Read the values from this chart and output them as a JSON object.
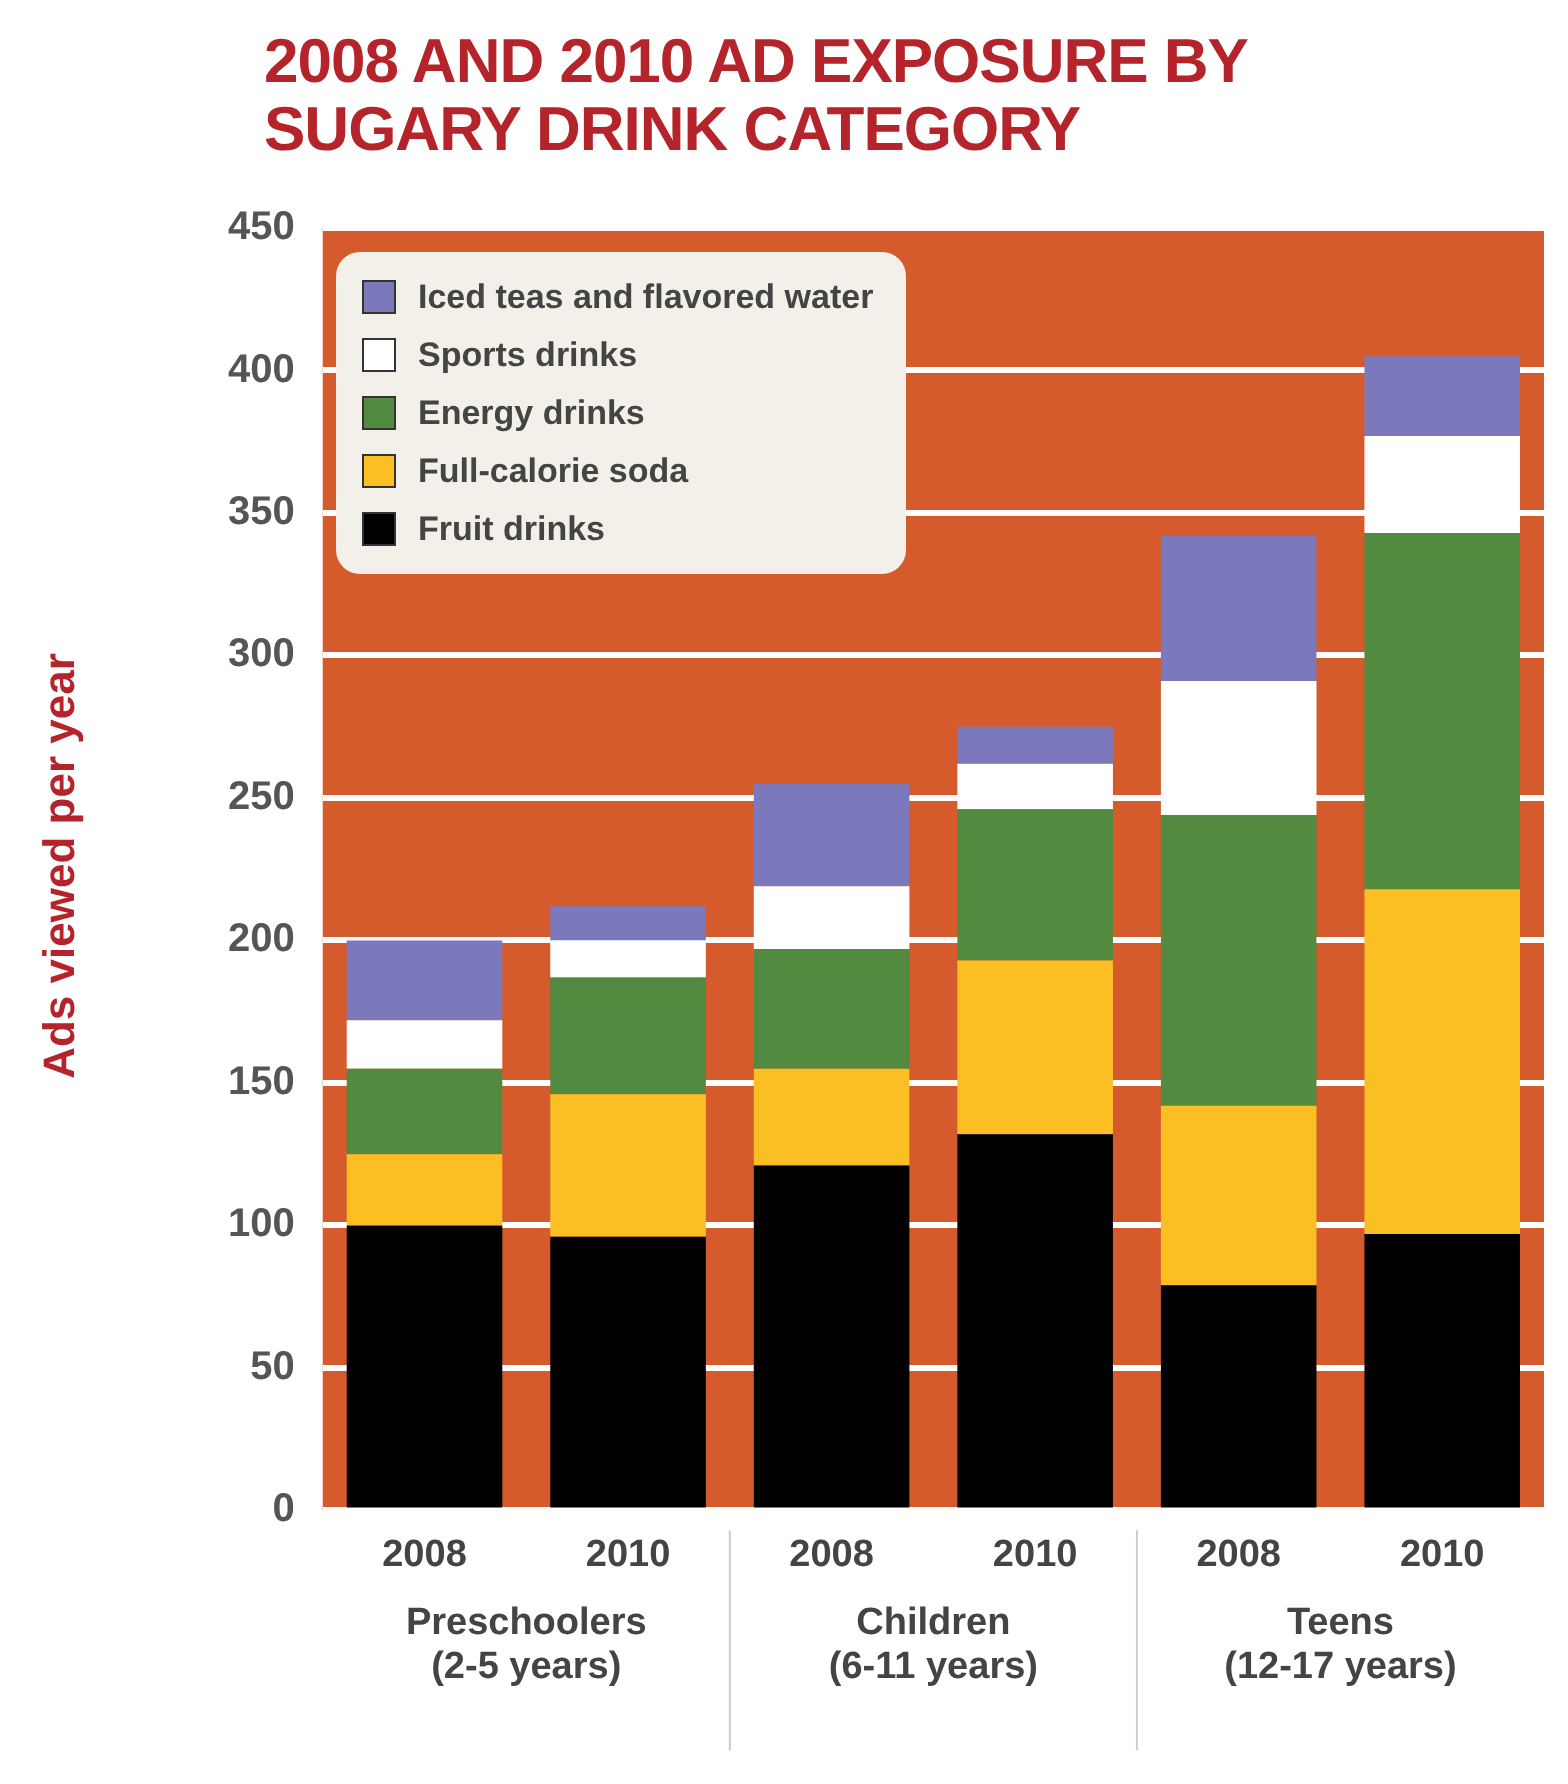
{
  "chart_data": {
    "type": "bar",
    "title": "2008 AND 2010 AD EXPOSURE BY SUGARY DRINK CATEGORY",
    "ylabel": "Ads viewed per year",
    "categories": [
      "2008",
      "2010",
      "2008",
      "2010",
      "2008",
      "2010"
    ],
    "annotations": [
      "Preschoolers (2-5 years)",
      "Children (6-11 years)",
      "Teens (12-17 years)"
    ],
    "stacked": true,
    "series": [
      {
        "name": "Fruit drinks",
        "color": "#000000",
        "values": [
          100,
          96,
          121,
          132,
          79,
          97
        ]
      },
      {
        "name": "Full-calorie soda",
        "color": "#fbbf24",
        "values": [
          25,
          50,
          34,
          61,
          63,
          121
        ]
      },
      {
        "name": "Energy drinks",
        "color": "#528a3f",
        "values": [
          30,
          41,
          42,
          53,
          102,
          125
        ]
      },
      {
        "name": "Sports drinks",
        "color": "#ffffff",
        "values": [
          17,
          13,
          22,
          16,
          47,
          34
        ]
      },
      {
        "name": "Iced teas and flavored water",
        "color": "#7b78bb",
        "values": [
          28,
          12,
          36,
          13,
          51,
          28
        ]
      }
    ],
    "ylim": [
      0,
      450
    ],
    "yticks": [
      0,
      50,
      100,
      150,
      200,
      250,
      300,
      350,
      400,
      450
    ],
    "grid": "y",
    "legend": "top left"
  }
}
